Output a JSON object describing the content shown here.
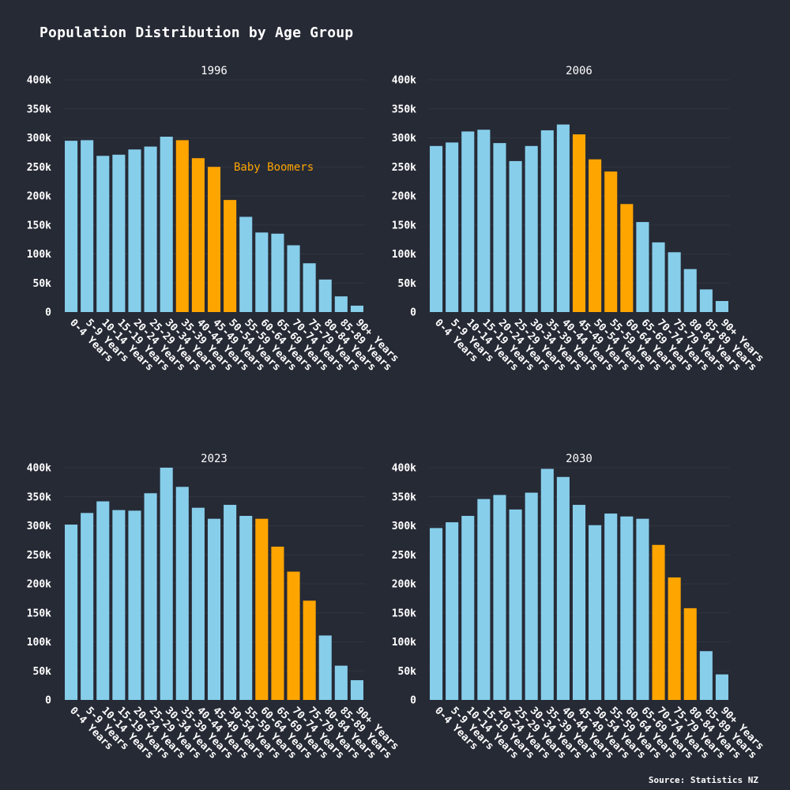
{
  "title": "Population Distribution by Age Group",
  "source": "Source: Statistics NZ",
  "colors": {
    "background": "#262a35",
    "bar_default": "#87ceeb",
    "bar_highlight": "#ffa500",
    "annotation": "#ffa500",
    "text": "#ffffff",
    "grid": "#30343f"
  },
  "chart_data": [
    {
      "type": "bar",
      "title": "1996",
      "categories": [
        "0-4 Years",
        "5-9 Years",
        "10-14 Years",
        "15-19 Years",
        "20-24 Years",
        "25-29 Years",
        "30-34 Years",
        "35-39 Years",
        "40-44 Years",
        "45-49 Years",
        "50-54 Years",
        "55-59 Years",
        "60-64 Years",
        "65-69 Years",
        "70-74 Years",
        "75-79 Years",
        "80-84 Years",
        "85-89 Years",
        "90+ Years"
      ],
      "values": [
        295000,
        296000,
        269000,
        271000,
        280000,
        285000,
        302000,
        296000,
        265000,
        250000,
        193000,
        164000,
        137000,
        135000,
        115000,
        84000,
        56000,
        27000,
        11000
      ],
      "highlight_categories": [
        "35-39 Years",
        "40-44 Years",
        "45-49 Years",
        "50-54 Years"
      ],
      "annotation": "Baby Boomers",
      "yticks": [
        "0",
        "50k",
        "100k",
        "150k",
        "200k",
        "250k",
        "300k",
        "350k",
        "400k"
      ],
      "ylim": [
        0,
        400000
      ],
      "grid": true
    },
    {
      "type": "bar",
      "title": "2006",
      "categories": [
        "0-4 Years",
        "5-9 Years",
        "10-14 Years",
        "15-19 Years",
        "20-24 Years",
        "25-29 Years",
        "30-34 Years",
        "35-39 Years",
        "40-44 Years",
        "45-49 Years",
        "50-54 Years",
        "55-59 Years",
        "60-64 Years",
        "65-69 Years",
        "70-74 Years",
        "75-79 Years",
        "80-84 Years",
        "85-89 Years",
        "90+ Years"
      ],
      "values": [
        286000,
        292000,
        311000,
        314000,
        291000,
        260000,
        286000,
        313000,
        323000,
        306000,
        263000,
        242000,
        186000,
        155000,
        120000,
        103000,
        74000,
        39000,
        19000
      ],
      "highlight_categories": [
        "45-49 Years",
        "50-54 Years",
        "55-59 Years",
        "60-64 Years"
      ],
      "yticks": [
        "0",
        "50k",
        "100k",
        "150k",
        "200k",
        "250k",
        "300k",
        "350k",
        "400k"
      ],
      "ylim": [
        0,
        400000
      ],
      "grid": true
    },
    {
      "type": "bar",
      "title": "2023",
      "categories": [
        "0-4 Years",
        "5-9 Years",
        "10-14 Years",
        "15-19 Years",
        "20-24 Years",
        "25-29 Years",
        "30-34 Years",
        "35-39 Years",
        "40-44 Years",
        "45-49 Years",
        "50-54 Years",
        "55-59 Years",
        "60-64 Years",
        "65-69 Years",
        "70-74 Years",
        "75-79 Years",
        "80-84 Years",
        "85-89 Years",
        "90+ Years"
      ],
      "values": [
        302000,
        322000,
        342000,
        327000,
        326000,
        356000,
        400000,
        367000,
        331000,
        312000,
        336000,
        317000,
        312000,
        264000,
        221000,
        171000,
        111000,
        59000,
        34000
      ],
      "highlight_categories": [
        "60-64 Years",
        "65-69 Years",
        "70-74 Years",
        "75-79 Years"
      ],
      "yticks": [
        "0",
        "50k",
        "100k",
        "150k",
        "200k",
        "250k",
        "300k",
        "350k",
        "400k"
      ],
      "ylim": [
        0,
        400000
      ],
      "grid": true
    },
    {
      "type": "bar",
      "title": "2030",
      "categories": [
        "0-4 Years",
        "5-9 Years",
        "10-14 Years",
        "15-19 Years",
        "20-24 Years",
        "25-29 Years",
        "30-34 Years",
        "35-39 Years",
        "40-44 Years",
        "45-49 Years",
        "50-54 Years",
        "55-59 Years",
        "60-64 Years",
        "65-69 Years",
        "70-74 Years",
        "75-79 Years",
        "80-84 Years",
        "85-89 Years",
        "90+ Years"
      ],
      "values": [
        296000,
        306000,
        317000,
        346000,
        353000,
        328000,
        357000,
        398000,
        384000,
        336000,
        301000,
        321000,
        316000,
        312000,
        267000,
        211000,
        158000,
        84000,
        44000
      ],
      "highlight_categories": [
        "70-74 Years",
        "75-79 Years",
        "80-84 Years"
      ],
      "yticks": [
        "0",
        "50k",
        "100k",
        "150k",
        "200k",
        "250k",
        "300k",
        "350k",
        "400k"
      ],
      "ylim": [
        0,
        400000
      ],
      "grid": true
    }
  ]
}
